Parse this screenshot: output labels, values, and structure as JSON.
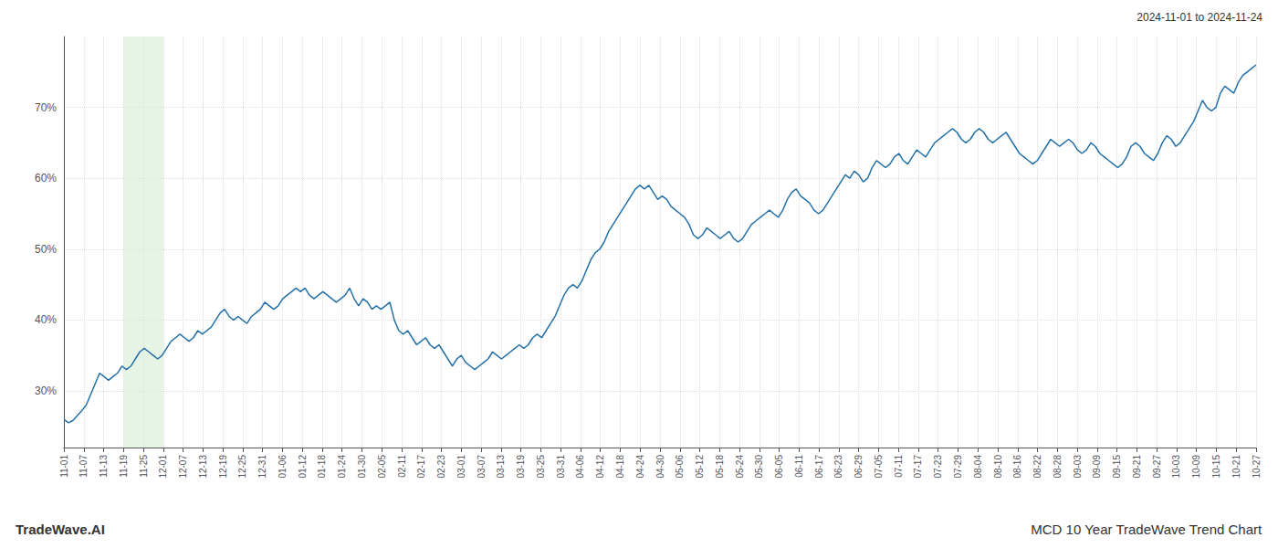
{
  "chart_data": {
    "type": "line",
    "title": "MCD 10 Year TradeWave Trend Chart",
    "subtitle": "2024-11-01 to 2024-11-24",
    "annotations": [
      "TradeWave.AI"
    ],
    "color": "#2471a8",
    "grid": true,
    "highlight": {
      "from": "11-19",
      "to": "12-01",
      "color": "#d4ecd4"
    },
    "xlim": [
      0,
      267
    ],
    "xticks": [
      {
        "value": 0,
        "label": "11-01"
      },
      {
        "value": 4.45,
        "label": "11-07"
      },
      {
        "value": 8.9,
        "label": "11-13"
      },
      {
        "value": 13.35,
        "label": "11-19"
      },
      {
        "value": 17.8,
        "label": "11-25"
      },
      {
        "value": 22.25,
        "label": "12-01"
      },
      {
        "value": 26.7,
        "label": "12-07"
      },
      {
        "value": 31.15,
        "label": "12-13"
      },
      {
        "value": 35.6,
        "label": "12-19"
      },
      {
        "value": 40.05,
        "label": "12-25"
      },
      {
        "value": 44.5,
        "label": "12-31"
      },
      {
        "value": 48.95,
        "label": "01-06"
      },
      {
        "value": 53.4,
        "label": "01-12"
      },
      {
        "value": 57.85,
        "label": "01-18"
      },
      {
        "value": 62.3,
        "label": "01-24"
      },
      {
        "value": 66.75,
        "label": "01-30"
      },
      {
        "value": 71.2,
        "label": "02-05"
      },
      {
        "value": 75.65,
        "label": "02-11"
      },
      {
        "value": 80.1,
        "label": "02-17"
      },
      {
        "value": 84.55,
        "label": "02-23"
      },
      {
        "value": 89,
        "label": "03-01"
      },
      {
        "value": 93.45,
        "label": "03-07"
      },
      {
        "value": 97.9,
        "label": "03-13"
      },
      {
        "value": 102.35,
        "label": "03-19"
      },
      {
        "value": 106.8,
        "label": "03-25"
      },
      {
        "value": 111.25,
        "label": "03-31"
      },
      {
        "value": 115.7,
        "label": "04-06"
      },
      {
        "value": 120.15,
        "label": "04-12"
      },
      {
        "value": 124.6,
        "label": "04-18"
      },
      {
        "value": 129.05,
        "label": "04-24"
      },
      {
        "value": 133.5,
        "label": "04-30"
      },
      {
        "value": 137.95,
        "label": "05-06"
      },
      {
        "value": 142.4,
        "label": "05-12"
      },
      {
        "value": 146.85,
        "label": "05-18"
      },
      {
        "value": 151.3,
        "label": "05-24"
      },
      {
        "value": 155.75,
        "label": "05-30"
      },
      {
        "value": 160.2,
        "label": "06-05"
      },
      {
        "value": 164.65,
        "label": "06-11"
      },
      {
        "value": 169.1,
        "label": "06-17"
      },
      {
        "value": 173.55,
        "label": "06-23"
      },
      {
        "value": 178,
        "label": "06-29"
      },
      {
        "value": 182.45,
        "label": "07-05"
      },
      {
        "value": 186.9,
        "label": "07-11"
      },
      {
        "value": 191.35,
        "label": "07-17"
      },
      {
        "value": 195.8,
        "label": "07-23"
      },
      {
        "value": 200.25,
        "label": "07-29"
      },
      {
        "value": 204.7,
        "label": "08-04"
      },
      {
        "value": 209.15,
        "label": "08-10"
      },
      {
        "value": 213.6,
        "label": "08-16"
      },
      {
        "value": 218.05,
        "label": "08-22"
      },
      {
        "value": 222.5,
        "label": "08-28"
      },
      {
        "value": 226.95,
        "label": "09-03"
      },
      {
        "value": 231.4,
        "label": "09-09"
      },
      {
        "value": 235.85,
        "label": "09-15"
      },
      {
        "value": 240.3,
        "label": "09-21"
      },
      {
        "value": 244.75,
        "label": "09-27"
      },
      {
        "value": 249.2,
        "label": "10-03"
      },
      {
        "value": 253.65,
        "label": "10-09"
      },
      {
        "value": 258.1,
        "label": "10-15"
      },
      {
        "value": 262.55,
        "label": "10-21"
      },
      {
        "value": 267,
        "label": "10-27"
      }
    ],
    "ylim": [
      22,
      80
    ],
    "yticks": [
      {
        "value": 30,
        "label": "30%"
      },
      {
        "value": 40,
        "label": "40%"
      },
      {
        "value": 50,
        "label": "50%"
      },
      {
        "value": 60,
        "label": "60%"
      },
      {
        "value": 70,
        "label": "70%"
      }
    ],
    "x": [
      0,
      1,
      2,
      3,
      4,
      5,
      6,
      7,
      8,
      9,
      10,
      11,
      12,
      13,
      14,
      15,
      16,
      17,
      18,
      19,
      20,
      21,
      22,
      23,
      24,
      25,
      26,
      27,
      28,
      29,
      30,
      31,
      32,
      33,
      34,
      35,
      36,
      37,
      38,
      39,
      40,
      41,
      42,
      43,
      44,
      45,
      46,
      47,
      48,
      49,
      50,
      51,
      52,
      53,
      54,
      55,
      56,
      57,
      58,
      59,
      60,
      61,
      62,
      63,
      64,
      65,
      66,
      67,
      68,
      69,
      70,
      71,
      72,
      73,
      74,
      75,
      76,
      77,
      78,
      79,
      80,
      81,
      82,
      83,
      84,
      85,
      86,
      87,
      88,
      89,
      90,
      91,
      92,
      93,
      94,
      95,
      96,
      97,
      98,
      99,
      100,
      101,
      102,
      103,
      104,
      105,
      106,
      107,
      108,
      109,
      110,
      111,
      112,
      113,
      114,
      115,
      116,
      117,
      118,
      119,
      120,
      121,
      122,
      123,
      124,
      125,
      126,
      127,
      128,
      129,
      130,
      131,
      132,
      133,
      134,
      135,
      136,
      137,
      138,
      139,
      140,
      141,
      142,
      143,
      144,
      145,
      146,
      147,
      148,
      149,
      150,
      151,
      152,
      153,
      154,
      155,
      156,
      157,
      158,
      159,
      160,
      161,
      162,
      163,
      164,
      165,
      166,
      167,
      168,
      169,
      170,
      171,
      172,
      173,
      174,
      175,
      176,
      177,
      178,
      179,
      180,
      181,
      182,
      183,
      184,
      185,
      186,
      187,
      188,
      189,
      190,
      191,
      192,
      193,
      194,
      195,
      196,
      197,
      198,
      199,
      200,
      201,
      202,
      203,
      204,
      205,
      206,
      207,
      208,
      209,
      210,
      211,
      212,
      213,
      214,
      215,
      216,
      217,
      218,
      219,
      220,
      221,
      222,
      223,
      224,
      225,
      226,
      227,
      228,
      229,
      230,
      231,
      232,
      233,
      234,
      235,
      236,
      237,
      238,
      239,
      240,
      241,
      242,
      243,
      244,
      245,
      246,
      247,
      248,
      249,
      250,
      251,
      252,
      253,
      254,
      255,
      256,
      257,
      258,
      259,
      260,
      261,
      262,
      263,
      264,
      265,
      266,
      267
    ],
    "values": [
      26.0,
      25.5,
      25.8,
      26.5,
      27.2,
      28.0,
      29.5,
      31.0,
      32.5,
      32.0,
      31.5,
      32.0,
      32.5,
      33.5,
      33.0,
      33.5,
      34.5,
      35.5,
      36.0,
      35.5,
      35.0,
      34.5,
      35.0,
      36.0,
      37.0,
      37.5,
      38.0,
      37.5,
      37.0,
      37.5,
      38.5,
      38.0,
      38.5,
      39.0,
      40.0,
      41.0,
      41.5,
      40.5,
      40.0,
      40.5,
      40.0,
      39.5,
      40.5,
      41.0,
      41.5,
      42.5,
      42.0,
      41.5,
      42.0,
      43.0,
      43.5,
      44.0,
      44.5,
      44.0,
      44.5,
      43.5,
      43.0,
      43.5,
      44.0,
      43.5,
      43.0,
      42.5,
      43.0,
      43.5,
      44.5,
      43.0,
      42.0,
      43.0,
      42.5,
      41.5,
      42.0,
      41.5,
      42.0,
      42.5,
      40.0,
      38.5,
      38.0,
      38.5,
      37.5,
      36.5,
      37.0,
      37.5,
      36.5,
      36.0,
      36.5,
      35.5,
      34.5,
      33.5,
      34.5,
      35.0,
      34.0,
      33.5,
      33.0,
      33.5,
      34.0,
      34.5,
      35.5,
      35.0,
      34.5,
      35.0,
      35.5,
      36.0,
      36.5,
      36.0,
      36.5,
      37.5,
      38.0,
      37.5,
      38.5,
      39.5,
      40.5,
      42.0,
      43.5,
      44.5,
      45.0,
      44.5,
      45.5,
      47.0,
      48.5,
      49.5,
      50.0,
      51.0,
      52.5,
      53.5,
      54.5,
      55.5,
      56.5,
      57.5,
      58.5,
      59.0,
      58.5,
      59.0,
      58.0,
      57.0,
      57.5,
      57.0,
      56.0,
      55.5,
      55.0,
      54.5,
      53.5,
      52.0,
      51.5,
      52.0,
      53.0,
      52.5,
      52.0,
      51.5,
      52.0,
      52.5,
      51.5,
      51.0,
      51.5,
      52.5,
      53.5,
      54.0,
      54.5,
      55.0,
      55.5,
      55.0,
      54.5,
      55.5,
      57.0,
      58.0,
      58.5,
      57.5,
      57.0,
      56.5,
      55.5,
      55.0,
      55.5,
      56.5,
      57.5,
      58.5,
      59.5,
      60.5,
      60.0,
      61.0,
      60.5,
      59.5,
      60.0,
      61.5,
      62.5,
      62.0,
      61.5,
      62.0,
      63.0,
      63.5,
      62.5,
      62.0,
      63.0,
      64.0,
      63.5,
      63.0,
      64.0,
      65.0,
      65.5,
      66.0,
      66.5,
      67.0,
      66.5,
      65.5,
      65.0,
      65.5,
      66.5,
      67.0,
      66.5,
      65.5,
      65.0,
      65.5,
      66.0,
      66.5,
      65.5,
      64.5,
      63.5,
      63.0,
      62.5,
      62.0,
      62.5,
      63.5,
      64.5,
      65.5,
      65.0,
      64.5,
      65.0,
      65.5,
      65.0,
      64.0,
      63.5,
      64.0,
      65.0,
      64.5,
      63.5,
      63.0,
      62.5,
      62.0,
      61.5,
      62.0,
      63.0,
      64.5,
      65.0,
      64.5,
      63.5,
      63.0,
      62.5,
      63.5,
      65.0,
      66.0,
      65.5,
      64.5,
      65.0,
      66.0,
      67.0,
      68.0,
      69.5,
      71.0,
      70.0,
      69.5,
      70.0,
      72.0,
      73.0,
      72.5,
      72.0,
      73.5,
      74.5,
      75.0,
      75.5,
      76.0
    ]
  }
}
